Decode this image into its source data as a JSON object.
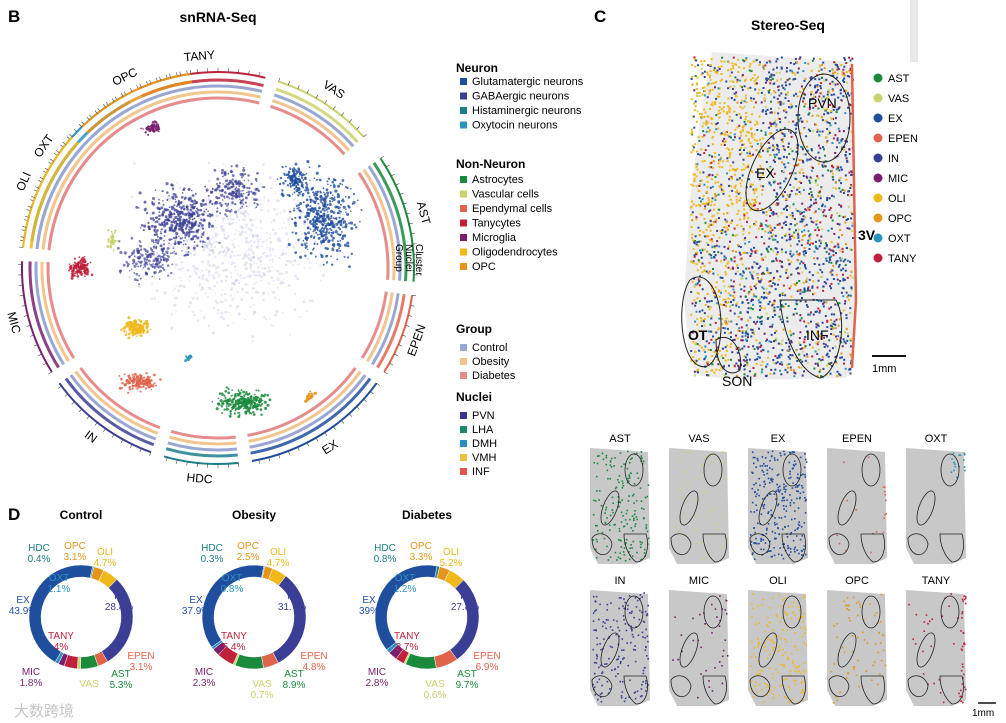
{
  "panels": {
    "B": "B",
    "C": "C",
    "D": "D"
  },
  "snrna": {
    "title": "snRNA-Seq",
    "ring_labels": [
      "OXT",
      "TANY",
      "VAS",
      "AST",
      "EPEN",
      "EX",
      "HDC",
      "IN",
      "MIC",
      "OLI",
      "OPC"
    ],
    "ring_inner_labels": [
      "Cluster",
      "Nuclei",
      "Group"
    ],
    "legend": {
      "neuron_title": "Neuron",
      "neuron": [
        {
          "label": "Glutamatergic neurons",
          "color": "#1f4e9e"
        },
        {
          "label": "GABAergic neurons",
          "color": "#3a3f95"
        },
        {
          "label": "Histaminergic neurons",
          "color": "#1b7f8a"
        },
        {
          "label": "Oxytocin neurons",
          "color": "#2a93c0"
        }
      ],
      "nonneuron_title": "Non-Neuron",
      "nonneuron": [
        {
          "label": "Astrocytes",
          "color": "#1a8a3c"
        },
        {
          "label": "Vascular cells",
          "color": "#c9d26b"
        },
        {
          "label": "Ependymal cells",
          "color": "#e0644c"
        },
        {
          "label": "Tanycytes",
          "color": "#c0203a"
        },
        {
          "label": "Microglia",
          "color": "#7a1f6e"
        },
        {
          "label": "Oligodendrocytes",
          "color": "#f0b81a"
        },
        {
          "label": "OPC",
          "color": "#e5951a"
        }
      ],
      "group_title": "Group",
      "group": [
        {
          "label": "Control",
          "color": "#9aa7d4"
        },
        {
          "label": "Obesity",
          "color": "#f2c58e"
        },
        {
          "label": "Diabetes",
          "color": "#e58d8d"
        }
      ],
      "nuclei_title": "Nuclei",
      "nuclei": [
        {
          "label": "PVN",
          "color": "#3a3590"
        },
        {
          "label": "LHA",
          "color": "#1a8a6a"
        },
        {
          "label": "DMH",
          "color": "#2a8fc0"
        },
        {
          "label": "VMH",
          "color": "#f0c040"
        },
        {
          "label": "INF",
          "color": "#e0584c"
        }
      ]
    }
  },
  "stereo": {
    "title": "Stereo-Seq",
    "legend": [
      {
        "label": "AST",
        "color": "#1a8a3c"
      },
      {
        "label": "VAS",
        "color": "#c9d26b"
      },
      {
        "label": "EX",
        "color": "#1f4e9e"
      },
      {
        "label": "EPEN",
        "color": "#e0644c"
      },
      {
        "label": "IN",
        "color": "#3a3f95"
      },
      {
        "label": "MIC",
        "color": "#7a1f6e"
      },
      {
        "label": "OLI",
        "color": "#f0b81a"
      },
      {
        "label": "OPC",
        "color": "#e5951a"
      },
      {
        "label": "OXT",
        "color": "#2a93c0"
      },
      {
        "label": "TANY",
        "color": "#c0203a"
      }
    ],
    "region_labels": [
      "PVN",
      "EX",
      "3V",
      "OT",
      "INF",
      "SON"
    ],
    "scale_bar": "1mm",
    "small_maps": [
      "AST",
      "VAS",
      "EX",
      "EPEN",
      "OXT",
      "IN",
      "MIC",
      "OLI",
      "OPC",
      "TANY"
    ],
    "small_scale": "1mm"
  },
  "chart_data": [
    {
      "type": "pie",
      "title": "Control",
      "categories": [
        "HDC",
        "OPC",
        "OLI",
        "IN",
        "EPEN",
        "AST",
        "VAS",
        "TANY",
        "MIC",
        "EX",
        "OXT"
      ],
      "values": [
        0.4,
        3.1,
        4.7,
        28.4,
        3.1,
        5.3,
        1.0,
        4.0,
        1.8,
        43.9,
        1.1
      ],
      "labels": [
        "0.4%",
        "3.1%",
        "4.7%",
        "28.4%",
        "3.1%",
        "5.3%",
        "",
        "4%",
        "1.8%",
        "43.9%",
        "1.1%"
      ]
    },
    {
      "type": "pie",
      "title": "Obesity",
      "categories": [
        "HDC",
        "OPC",
        "OLI",
        "IN",
        "EPEN",
        "AST",
        "VAS",
        "TANY",
        "MIC",
        "EX",
        "OXT"
      ],
      "values": [
        0.3,
        2.5,
        4.7,
        31.7,
        4.8,
        8.9,
        0.7,
        5.4,
        2.3,
        37.9,
        0.8
      ],
      "labels": [
        "0.3%",
        "2.5%",
        "4.7%",
        "31.7%",
        "4.8%",
        "8.9%",
        "0.7%",
        "5.4%",
        "2.3%",
        "37.9%",
        "0.8%"
      ]
    },
    {
      "type": "pie",
      "title": "Diabetes",
      "categories": [
        "HDC",
        "OPC",
        "OLI",
        "IN",
        "EPEN",
        "AST",
        "VAS",
        "TANY",
        "MIC",
        "EX",
        "OXT"
      ],
      "values": [
        0.8,
        3.3,
        5.2,
        27.8,
        6.9,
        9.7,
        0.6,
        2.7,
        2.8,
        39.0,
        1.2
      ],
      "labels": [
        "0.8%",
        "3.3%",
        "5.2%",
        "27.8%",
        "6.9%",
        "9.7%",
        "0.6%",
        "2.7%",
        "2.8%",
        "39%",
        "1.2%"
      ]
    }
  ],
  "cell_colors": {
    "HDC": "#1b7f8a",
    "OPC": "#e5951a",
    "OLI": "#f0b81a",
    "IN": "#3a3f95",
    "EPEN": "#e0644c",
    "AST": "#1a8a3c",
    "VAS": "#c9d26b",
    "TANY": "#c0203a",
    "MIC": "#7a1f6e",
    "EX": "#1f4e9e",
    "OXT": "#2a93c0"
  },
  "watermark": "大数跨境"
}
